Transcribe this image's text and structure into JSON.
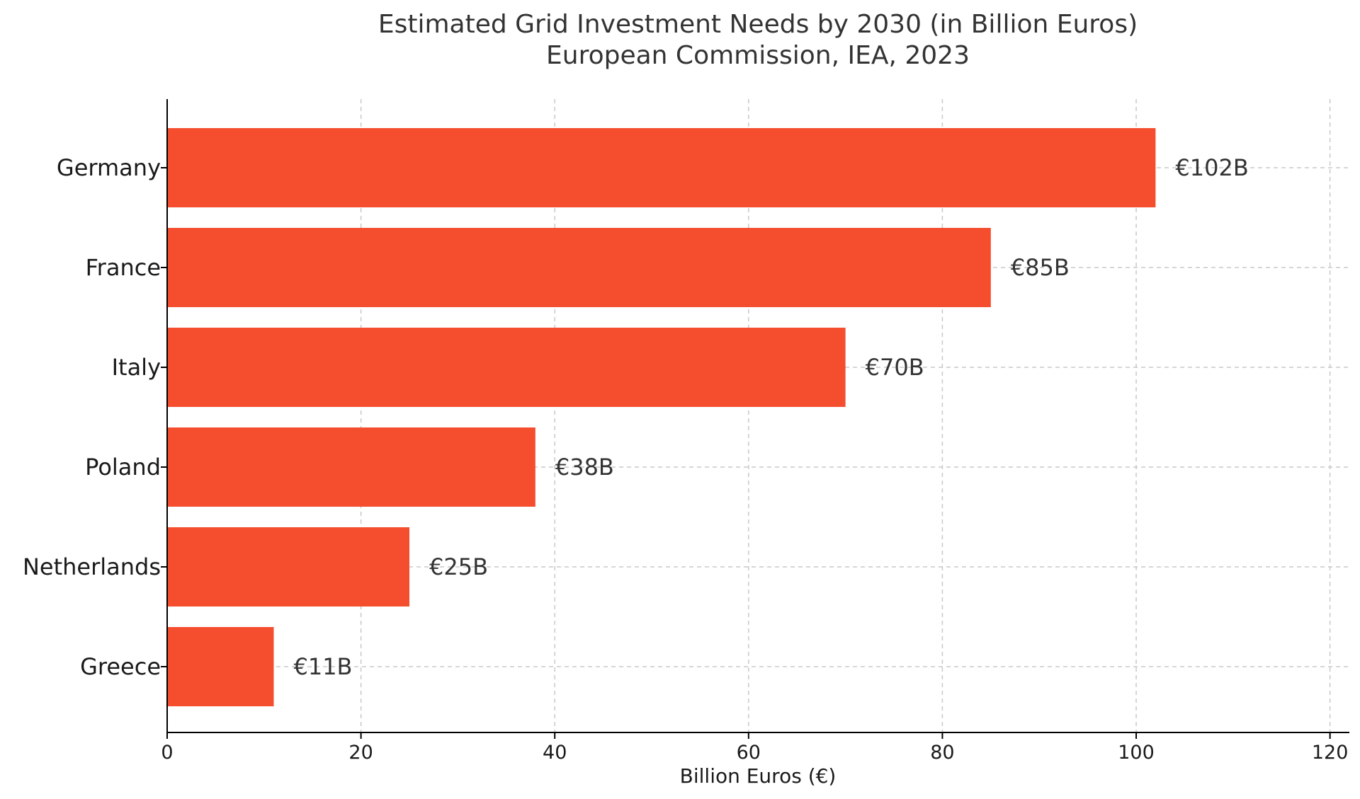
{
  "chart_data": {
    "type": "bar",
    "orientation": "horizontal",
    "title": "Estimated Grid Investment Needs by 2030 (in Billion Euros)",
    "subtitle": "European Commission, IEA, 2023",
    "categories": [
      "Germany",
      "France",
      "Italy",
      "Poland",
      "Netherlands",
      "Greece"
    ],
    "values": [
      102,
      85,
      70,
      38,
      25,
      11
    ],
    "value_labels": [
      "€102B",
      "€85B",
      "€70B",
      "€38B",
      "€25B",
      "€11B"
    ],
    "xlabel": "Billion Euros (€)",
    "ylabel": "",
    "xlim": [
      0,
      122
    ],
    "xticks": [
      0,
      20,
      40,
      60,
      80,
      100,
      120
    ],
    "xtick_labels": [
      "0",
      "20",
      "40",
      "60",
      "80",
      "100",
      "120"
    ],
    "grid": true,
    "bar_color": "#f44e2f"
  }
}
